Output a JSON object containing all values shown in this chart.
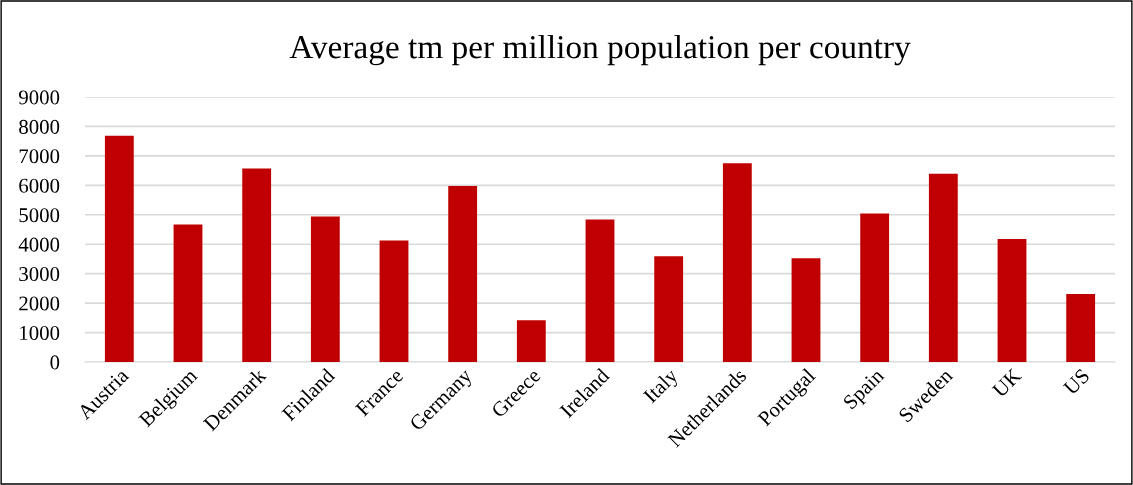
{
  "chart_data": {
    "type": "bar",
    "title": "Average tm per million population per country",
    "categories": [
      "Austria",
      "Belgium",
      "Denmark",
      "Finland",
      "France",
      "Germany",
      "Greece",
      "Ireland",
      "Italy",
      "Netherlands",
      "Portugal",
      "Spain",
      "Sweden",
      "UK",
      "US"
    ],
    "values": [
      7680,
      4670,
      6570,
      4940,
      4130,
      5980,
      1420,
      4840,
      3590,
      6750,
      3520,
      5040,
      6390,
      4180,
      2310
    ],
    "color": "#c00000",
    "ylim": [
      0,
      9000
    ],
    "yticks": [
      0,
      1000,
      2000,
      3000,
      4000,
      5000,
      6000,
      7000,
      8000,
      9000
    ],
    "grid": "y"
  }
}
